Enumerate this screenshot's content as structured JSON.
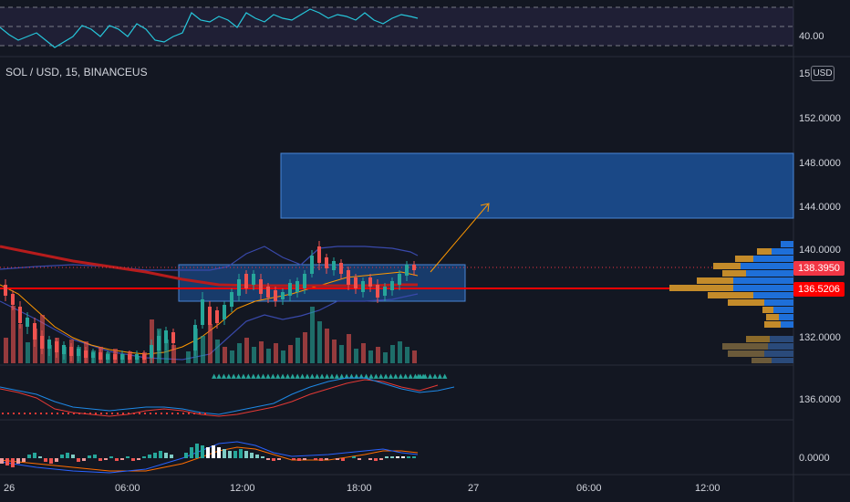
{
  "symbol_title": "SOL / USD, 15, BINANCEUS",
  "currency": "USD",
  "top_partial_price": "15",
  "rsi_axis": {
    "level_label": "40.00"
  },
  "price_axis": {
    "labels": [
      "152.0000",
      "148.0000",
      "144.0000",
      "140.0000",
      "132.0000"
    ]
  },
  "osc1_axis": {
    "label": "136.0000"
  },
  "osc2_axis": {
    "label": "0.0000"
  },
  "price_tags": {
    "current": {
      "value": "138.3950",
      "color": "#f23645"
    },
    "line": {
      "value": "136.5206",
      "color": "#ff0000"
    }
  },
  "time_axis": {
    "labels": [
      "26",
      "06:00",
      "12:00",
      "18:00",
      "27",
      "06:00",
      "12:00"
    ]
  },
  "colors": {
    "background": "#131722",
    "up": "#26a69a",
    "down": "#ef5350",
    "zone": "#1e5aa8",
    "rsi": "#26c6da",
    "ma": "#b71c1c",
    "support": "#ff0000"
  }
}
